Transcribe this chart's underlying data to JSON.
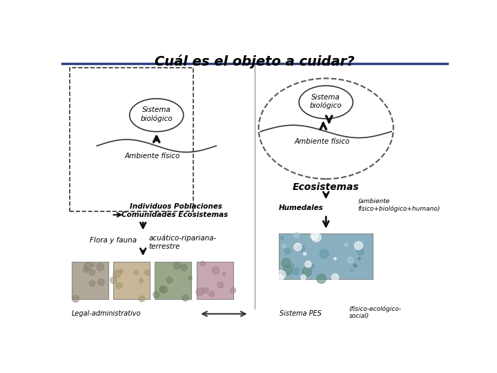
{
  "title": "Cuál es el objeto a cuidar?",
  "title_fontsize": 14,
  "bg_color": "#ffffff",
  "header_line_color": "#2f3f7f",
  "text_sistema_biologico_left": "Sistema\nbiológico",
  "text_sistema_biologico_right": "Sistema\nbiológico",
  "text_ambiente_fisico_left": "Ambiente físico",
  "text_ambiente_fisico_right": "Ambiente físico",
  "text_individuos": "Individuos Poblaciones",
  "text_comunidades": "Comunidades Ecosistemas",
  "text_ecosistemas": "Ecosistemas",
  "text_humedales": "Humedales",
  "text_ambiente_complejo": "(ambiente\nfísico+biológico+humano)",
  "text_flora_fauna": "Flora y fauna",
  "text_acuatico": "acuático-ripariana-\nterrestre",
  "text_legal": "Legal-administrativo",
  "text_sistema_pes": "Sistema PES",
  "text_fisico_ecologico": "(físico-ecológico-\nsocial)",
  "small_fontsize": 7.5,
  "medium_fontsize": 9
}
